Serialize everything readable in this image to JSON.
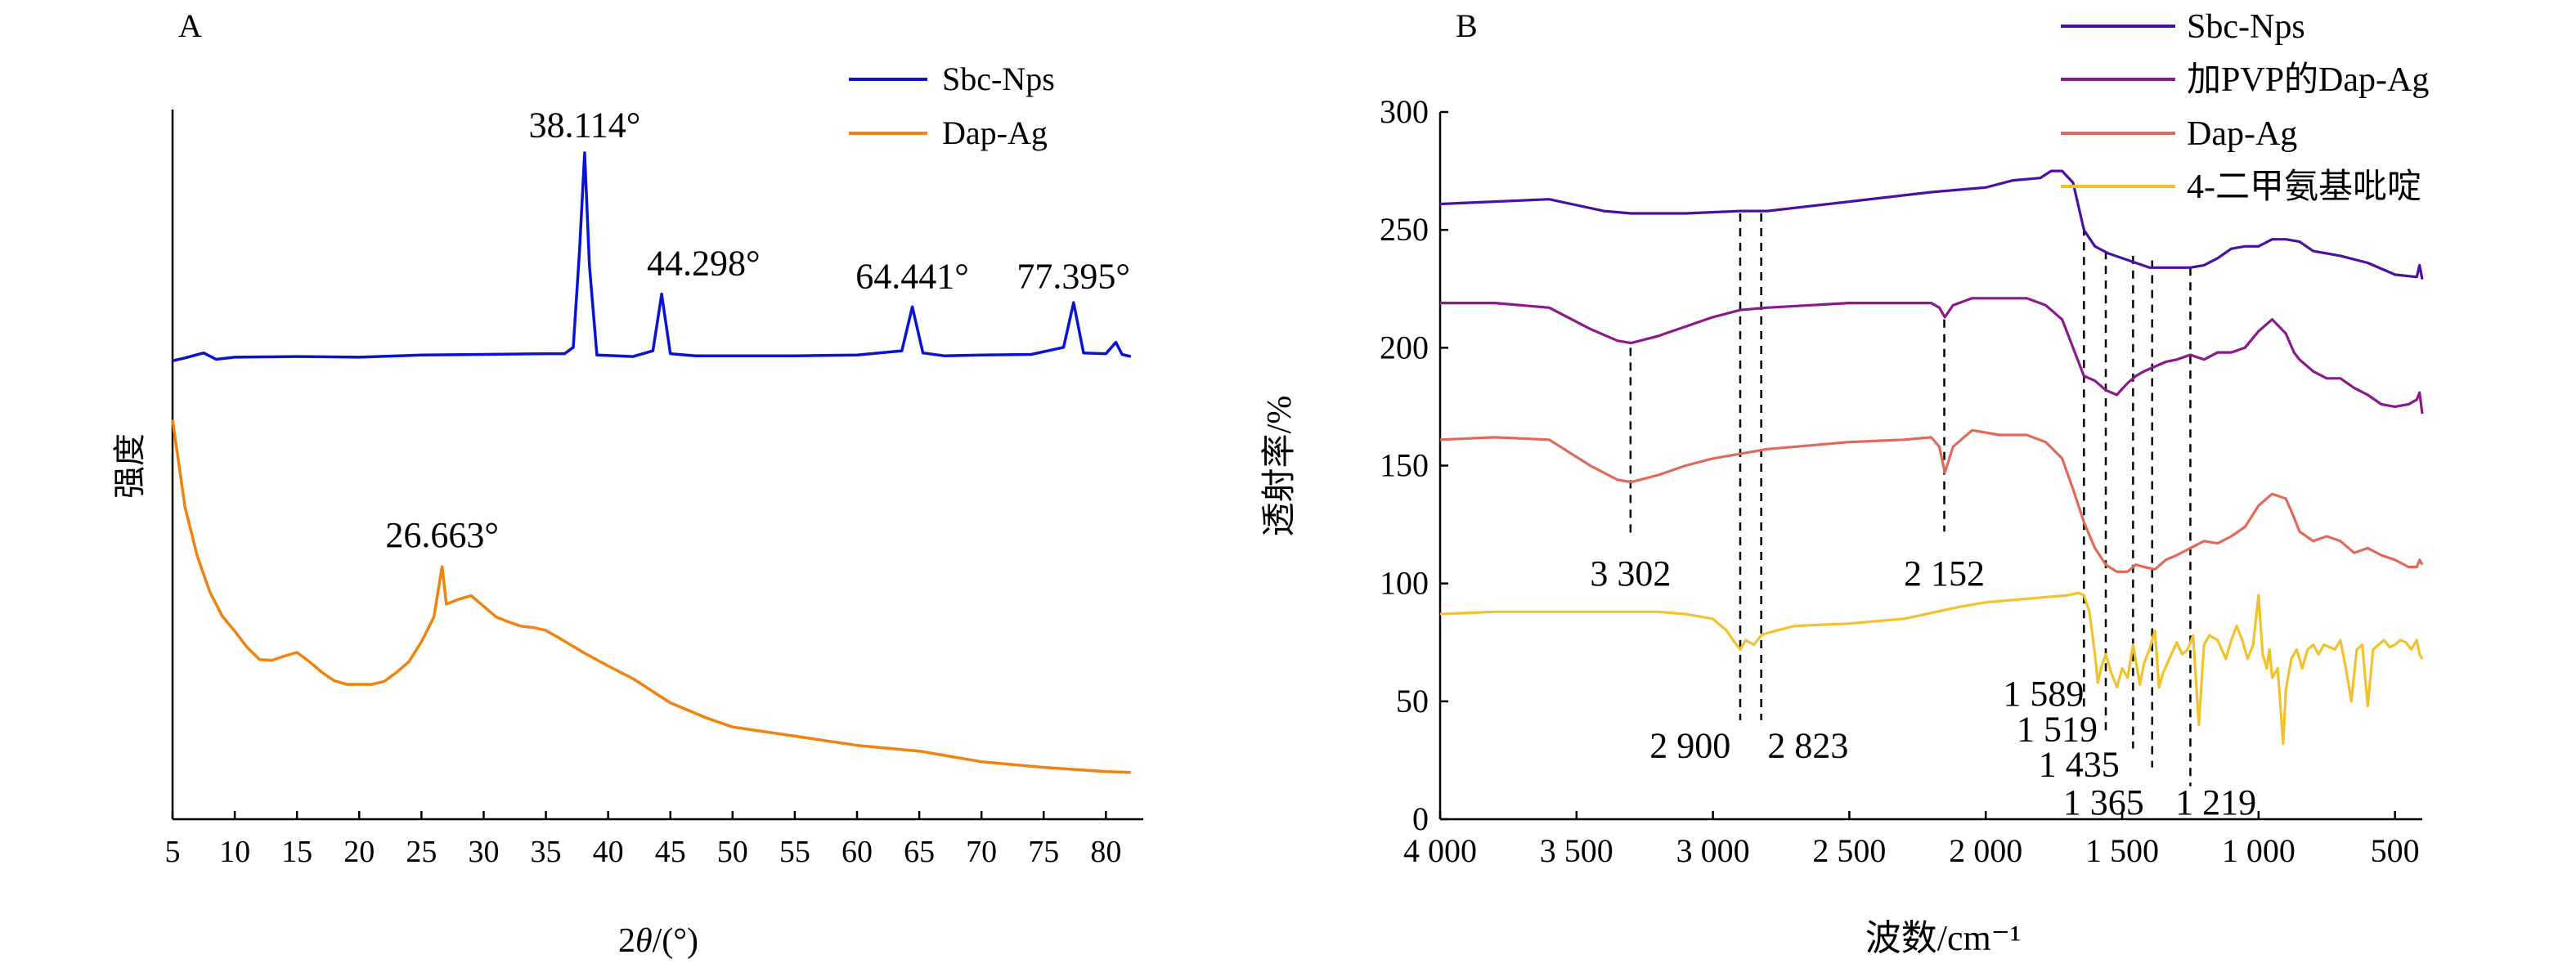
{
  "chart_data": [
    {
      "panel_label": "A",
      "type": "line",
      "xlabel_italic": "θ",
      "xlabel_prefix": "2",
      "xlabel_suffix": "/(°)",
      "ylabel": "强度",
      "xlim": [
        5,
        83
      ],
      "ylim": [
        0,
        1.0
      ],
      "y_ticks_shown": false,
      "x_ticks": [
        5,
        10,
        15,
        20,
        25,
        30,
        35,
        40,
        45,
        50,
        55,
        60,
        65,
        70,
        75,
        80
      ],
      "legend": {
        "placement": "top-right",
        "entries": [
          "Sbc-Nps",
          "Dap-Ag"
        ]
      },
      "series": [
        {
          "name": "Sbc-Nps",
          "color": "#0a12d6",
          "x": [
            5,
            6,
            7.5,
            8.5,
            10,
            15,
            20,
            25,
            30,
            35,
            36.5,
            37.2,
            37.7,
            38.11,
            38.5,
            39.1,
            42,
            43.6,
            44.3,
            45,
            47,
            50,
            55,
            60,
            63.6,
            64.44,
            65.3,
            67,
            70,
            74,
            76.6,
            77.4,
            78.2,
            80,
            80.8,
            81.3,
            82
          ],
          "y": [
            0.646,
            0.65,
            0.657,
            0.648,
            0.651,
            0.652,
            0.651,
            0.654,
            0.655,
            0.656,
            0.656,
            0.665,
            0.8,
            0.939,
            0.78,
            0.654,
            0.652,
            0.66,
            0.74,
            0.656,
            0.653,
            0.653,
            0.653,
            0.654,
            0.66,
            0.722,
            0.657,
            0.653,
            0.654,
            0.655,
            0.665,
            0.728,
            0.657,
            0.656,
            0.672,
            0.655,
            0.652
          ]
        },
        {
          "name": "Dap-Ag",
          "color": "#f0820f",
          "x": [
            5,
            6,
            7,
            8,
            9,
            10,
            11,
            12,
            13,
            14,
            15,
            16,
            17,
            18,
            19,
            20,
            21,
            22,
            23,
            24,
            25,
            26,
            26.66,
            27,
            28,
            29,
            30,
            31,
            32,
            33,
            34,
            35,
            36,
            38,
            40,
            42,
            45,
            48,
            50,
            55,
            60,
            65,
            70,
            75,
            80,
            82
          ],
          "y": [
            0.563,
            0.44,
            0.37,
            0.32,
            0.286,
            0.265,
            0.242,
            0.225,
            0.224,
            0.23,
            0.235,
            0.222,
            0.207,
            0.195,
            0.19,
            0.19,
            0.19,
            0.194,
            0.207,
            0.222,
            0.25,
            0.285,
            0.356,
            0.303,
            0.31,
            0.315,
            0.3,
            0.285,
            0.278,
            0.272,
            0.27,
            0.266,
            0.256,
            0.235,
            0.216,
            0.198,
            0.164,
            0.142,
            0.13,
            0.117,
            0.104,
            0.096,
            0.081,
            0.073,
            0.067,
            0.066
          ]
        }
      ],
      "annotations": [
        "38.114°",
        "44.298°",
        "64.441°",
        "77.395°",
        "26.663°"
      ]
    },
    {
      "panel_label": "B",
      "type": "line",
      "xlabel": "波数/cm⁻¹",
      "ylabel": "透射率/%",
      "xlim": [
        4000,
        400
      ],
      "ylim": [
        0,
        300
      ],
      "x_ticks": [
        4000,
        3500,
        3000,
        2500,
        2000,
        1500,
        1000,
        500
      ],
      "x_tick_labels": [
        "4 000",
        "3 500",
        "3 000",
        "2 500",
        "2 000",
        "1 500",
        "1 000",
        "500"
      ],
      "y_ticks": [
        0,
        50,
        100,
        150,
        200,
        250,
        300
      ],
      "legend": {
        "placement": "top-right",
        "entries": [
          "Sbc-Nps",
          "加PVP的Dap-Ag",
          "Dap-Ag",
          "4-二甲氨基吡啶"
        ]
      },
      "series": [
        {
          "name": "Sbc-Nps",
          "color": "#4b0fa6",
          "x": [
            4000,
            3800,
            3600,
            3400,
            3300,
            3100,
            2900,
            2800,
            2500,
            2200,
            2000,
            1900,
            1800,
            1760,
            1720,
            1680,
            1640,
            1600,
            1550,
            1500,
            1450,
            1400,
            1350,
            1250,
            1200,
            1150,
            1100,
            1050,
            1000,
            950,
            900,
            850,
            800,
            700,
            600,
            500,
            420,
            410,
            400
          ],
          "y": [
            261,
            262,
            263,
            258,
            257,
            257,
            258,
            258,
            262,
            266,
            268,
            271,
            272,
            275,
            275,
            270,
            250,
            243,
            240,
            238,
            236,
            234,
            234,
            234,
            235,
            238,
            242,
            243,
            243,
            246,
            246,
            245,
            241,
            239,
            236,
            231,
            230,
            235,
            229
          ]
        },
        {
          "name": "加PVP的Dap-Ag",
          "color": "#8a1a8c",
          "x": [
            4000,
            3800,
            3600,
            3450,
            3350,
            3300,
            3200,
            3100,
            3000,
            2900,
            2800,
            2500,
            2300,
            2200,
            2170,
            2150,
            2120,
            2050,
            1950,
            1850,
            1780,
            1720,
            1680,
            1640,
            1600,
            1560,
            1520,
            1480,
            1450,
            1420,
            1380,
            1340,
            1300,
            1250,
            1200,
            1150,
            1100,
            1050,
            1000,
            950,
            900,
            870,
            850,
            800,
            750,
            700,
            650,
            600,
            550,
            500,
            450,
            420,
            410,
            400
          ],
          "y": [
            219,
            219,
            217,
            208,
            203,
            202,
            205,
            209,
            213,
            216,
            217,
            219,
            219,
            219,
            217,
            213,
            218,
            221,
            221,
            221,
            218,
            212,
            200,
            188,
            186,
            182,
            180,
            185,
            188,
            190,
            192,
            194,
            195,
            197,
            195,
            198,
            198,
            200,
            207,
            212,
            206,
            198,
            195,
            190,
            187,
            187,
            183,
            180,
            176,
            175,
            176,
            178,
            181,
            172
          ]
        },
        {
          "name": "Dap-Ag",
          "color": "#e06a5a",
          "x": [
            4000,
            3800,
            3600,
            3450,
            3350,
            3300,
            3200,
            3100,
            3000,
            2900,
            2800,
            2500,
            2300,
            2200,
            2170,
            2150,
            2120,
            2050,
            1950,
            1850,
            1780,
            1720,
            1680,
            1640,
            1600,
            1560,
            1520,
            1480,
            1450,
            1420,
            1380,
            1340,
            1300,
            1250,
            1200,
            1150,
            1100,
            1050,
            1000,
            950,
            900,
            870,
            850,
            800,
            750,
            700,
            650,
            600,
            550,
            500,
            450,
            420,
            410,
            400
          ],
          "y": [
            161,
            162,
            161,
            150,
            144,
            143,
            146,
            150,
            153,
            155,
            157,
            160,
            161,
            162,
            158,
            147,
            158,
            165,
            163,
            163,
            160,
            153,
            140,
            126,
            115,
            108,
            105,
            105,
            108,
            107,
            106,
            110,
            112,
            115,
            118,
            117,
            120,
            124,
            133,
            138,
            136,
            128,
            122,
            118,
            120,
            118,
            113,
            115,
            112,
            110,
            107,
            107,
            110,
            108
          ]
        },
        {
          "name": "4-二甲氨基吡啶",
          "color": "#f2c12e",
          "x": [
            4000,
            3800,
            3600,
            3400,
            3200,
            3100,
            3000,
            2950,
            2920,
            2900,
            2880,
            2850,
            2823,
            2800,
            2700,
            2500,
            2300,
            2100,
            2000,
            1900,
            1800,
            1700,
            1660,
            1640,
            1620,
            1600,
            1589,
            1575,
            1560,
            1540,
            1519,
            1500,
            1480,
            1460,
            1435,
            1420,
            1400,
            1380,
            1365,
            1350,
            1320,
            1300,
            1280,
            1260,
            1240,
            1219,
            1200,
            1180,
            1150,
            1120,
            1100,
            1080,
            1060,
            1040,
            1020,
            1000,
            985,
            970,
            960,
            950,
            930,
            910,
            900,
            880,
            860,
            840,
            820,
            800,
            780,
            760,
            740,
            720,
            700,
            680,
            660,
            640,
            620,
            600,
            580,
            560,
            540,
            520,
            500,
            480,
            460,
            440,
            420,
            410,
            400
          ],
          "y": [
            87,
            88,
            88,
            88,
            88,
            87,
            85,
            80,
            75,
            72,
            76,
            74,
            78,
            79,
            82,
            83,
            85,
            90,
            92,
            93,
            94,
            95,
            96,
            95,
            88,
            70,
            58,
            65,
            70,
            62,
            56,
            64,
            60,
            74,
            57,
            66,
            72,
            80,
            56,
            62,
            70,
            75,
            70,
            72,
            78,
            40,
            74,
            78,
            76,
            68,
            76,
            82,
            76,
            68,
            74,
            95,
            70,
            64,
            72,
            60,
            64,
            32,
            55,
            68,
            72,
            64,
            72,
            74,
            70,
            74,
            73,
            72,
            76,
            64,
            50,
            72,
            74,
            48,
            72,
            74,
            76,
            73,
            74,
            76,
            75,
            72,
            76,
            70,
            68
          ]
        }
      ],
      "peak_labels": [
        "3 302",
        "2 152",
        "2 900",
        "2 823",
        "1 589",
        "1 519",
        "1 435",
        "1 365",
        "1 219"
      ],
      "peak_positions": [
        3302,
        2152,
        2900,
        2823,
        1589,
        1519,
        1435,
        1365,
        1219
      ]
    }
  ]
}
